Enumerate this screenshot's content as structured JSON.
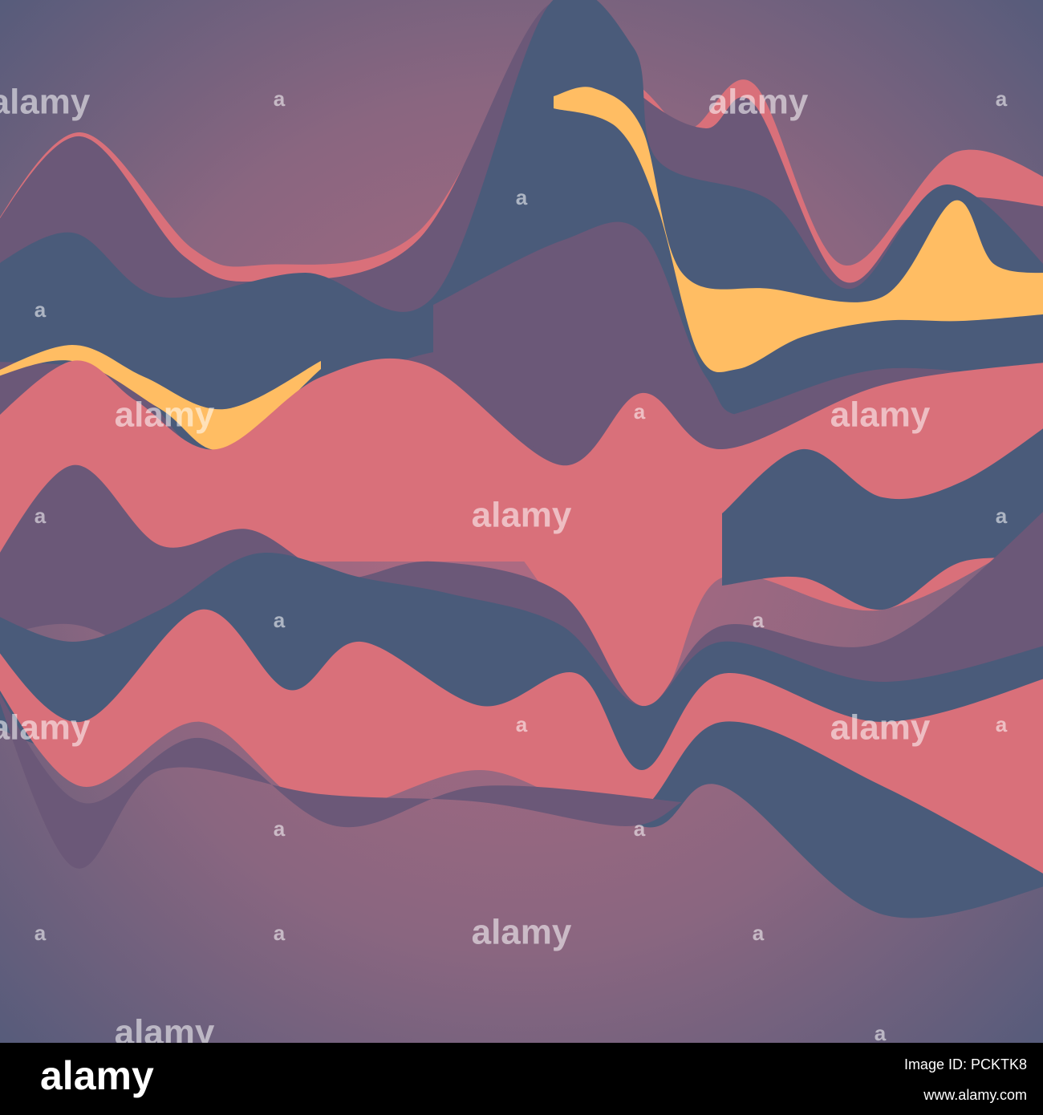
{
  "watermarks": [
    "alamy",
    "a",
    "alamy",
    "a",
    "a",
    "a",
    "alamy",
    "a",
    "alamy",
    "a",
    "alamy",
    "a",
    "a",
    "a",
    "alamy",
    "a",
    "alamy",
    "a",
    "a",
    "a",
    "a",
    "a",
    "alamy",
    "a",
    "alamy",
    "a"
  ],
  "footer": {
    "logo": "alamy",
    "image_id": "Image ID: PCKTK8",
    "url": "www.alamy.com"
  }
}
